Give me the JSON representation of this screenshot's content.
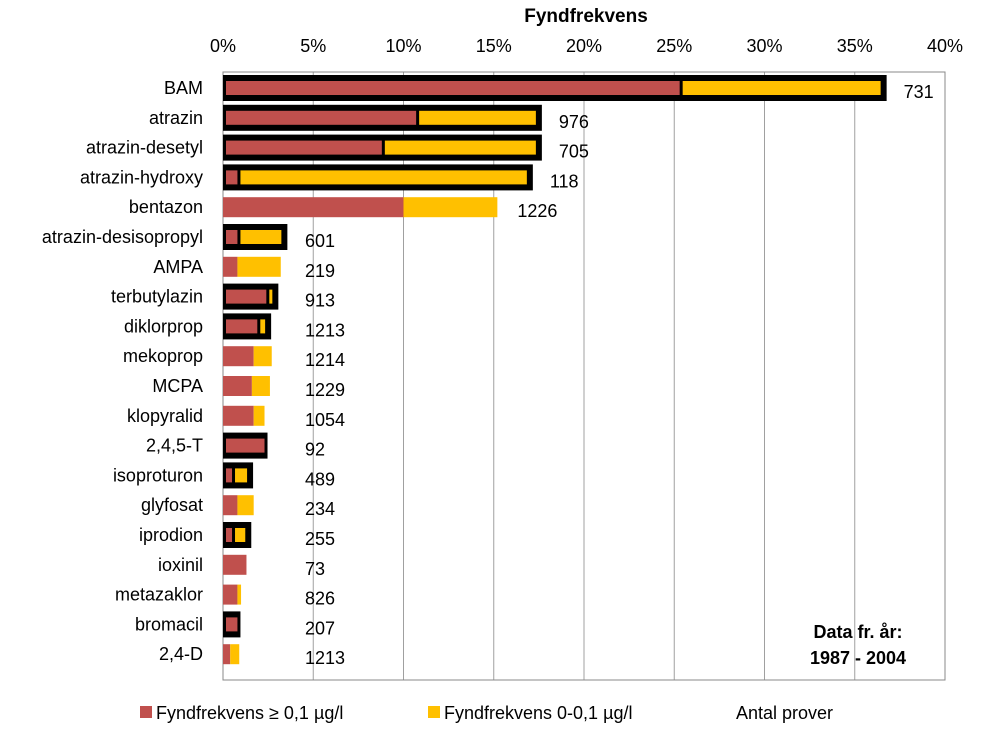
{
  "colors": {
    "high": "#c0504d",
    "low": "#ffc000",
    "frame": "#000000",
    "grid": "#a0a0a0"
  },
  "note": {
    "line1": "Data fr. år:",
    "line2": "1987 - 2004"
  },
  "legend": {
    "high_label": "Fyndfrekvens ≥ 0,1 µg/l",
    "low_label": "Fyndfrekvens 0-0,1 µg/l",
    "count_label": "Antal prover"
  },
  "chart_data": {
    "type": "bar",
    "orientation": "horizontal",
    "stacked": true,
    "title": "Fyndfrekvens",
    "xlim": [
      0,
      40
    ],
    "xtick_labels": [
      "0%",
      "5%",
      "10%",
      "15%",
      "20%",
      "25%",
      "30%",
      "35%",
      "40%"
    ],
    "grid": true,
    "legend_position": "bottom",
    "categories": [
      "BAM",
      "atrazin",
      "atrazin-desetyl",
      "atrazin-hydroxy",
      "bentazon",
      "atrazin-desisopropyl",
      "AMPA",
      "terbutylazin",
      "diklorprop",
      "mekoprop",
      "MCPA",
      "klopyralid",
      "2,4,5-T",
      "isoproturon",
      "glyfosat",
      "iprodion",
      "ioxinil",
      "metazaklor",
      "bromacil",
      "2,4-D"
    ],
    "series": [
      {
        "name": "Fyndfrekvens ≥ 0,1 µg/l",
        "values": [
          25.3,
          10.7,
          8.8,
          0.8,
          10.0,
          0.8,
          0.8,
          2.4,
          1.9,
          1.7,
          1.6,
          1.7,
          2.3,
          0.5,
          0.8,
          0.5,
          1.3,
          0.8,
          0.8,
          0.4
        ]
      },
      {
        "name": "Fyndfrekvens 0-0,1 µg/l",
        "values": [
          11.3,
          6.8,
          8.7,
          16.2,
          5.2,
          2.6,
          2.4,
          0.5,
          0.6,
          1.0,
          1.0,
          0.6,
          0.0,
          1.0,
          0.9,
          0.9,
          0.0,
          0.2,
          0.0,
          0.5
        ]
      }
    ],
    "counts": [
      "731",
      "976",
      "705",
      "118",
      "1226",
      "601",
      "219",
      "913",
      "1213",
      "1214",
      "1229",
      "1054",
      "92",
      "489",
      "234",
      "255",
      "73",
      "826",
      "207",
      "1213"
    ],
    "framed": [
      true,
      true,
      true,
      true,
      false,
      true,
      false,
      true,
      true,
      false,
      false,
      false,
      true,
      true,
      false,
      true,
      false,
      false,
      true,
      false
    ]
  }
}
